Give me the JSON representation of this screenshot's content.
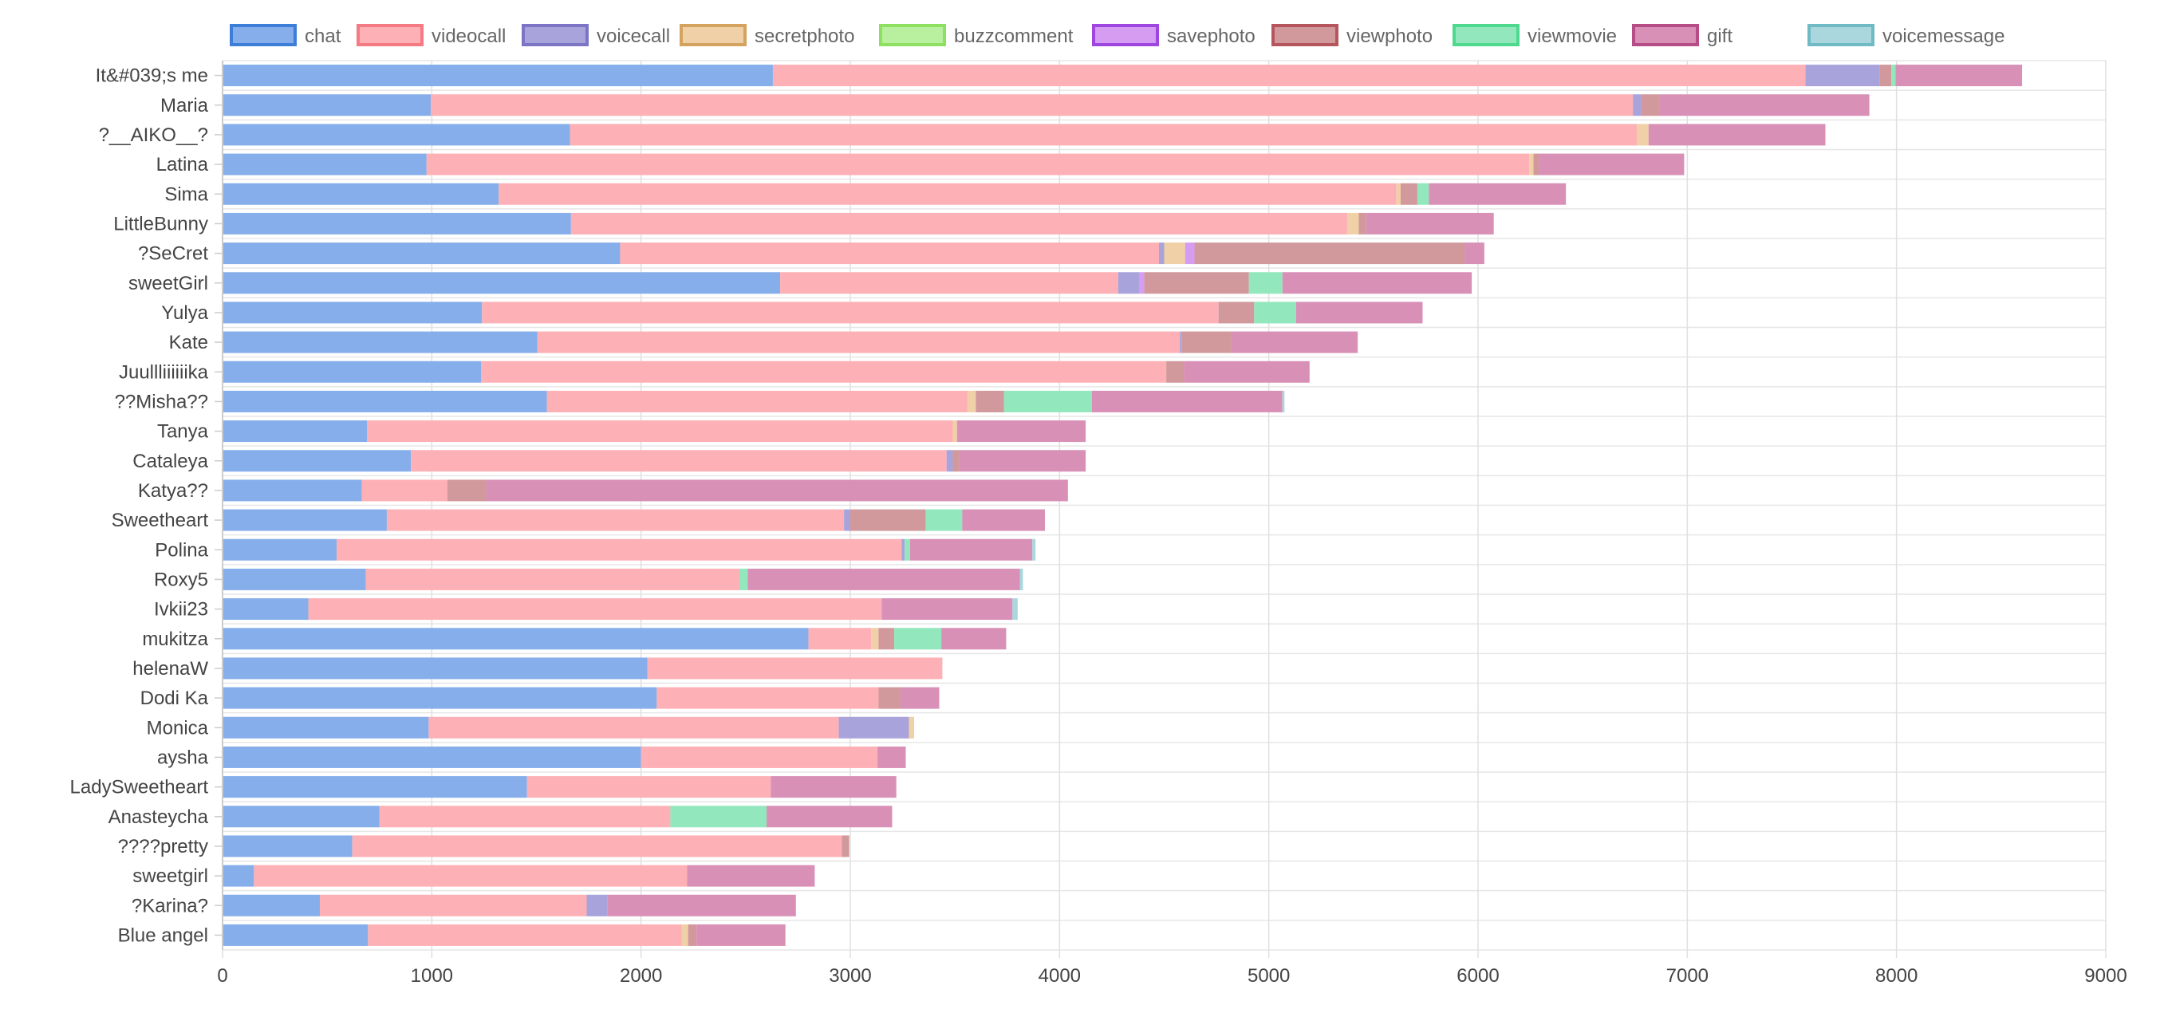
{
  "chart_data": {
    "type": "bar",
    "orientation": "horizontal",
    "stacked": true,
    "title": "",
    "xlabel": "",
    "ylabel": "",
    "xlim": [
      0,
      9000
    ],
    "x_ticks": [
      "0",
      "1000",
      "2000",
      "3000",
      "4000",
      "5000",
      "6000",
      "7000",
      "8000",
      "9000"
    ],
    "grid": true,
    "legend_position": "top",
    "categories": [
      "It&#039;s me",
      "Maria",
      "?__AIKO__?",
      "Latina",
      "Sima",
      "LittleBunny",
      "?SeCret",
      "sweetGirl",
      "Yulya",
      "Kate",
      "Juullliiiiiika",
      "??Misha??",
      "Tanya",
      "Cataleya",
      "Katya??",
      "Sweetheart",
      "Polina",
      "Roxy5",
      "Ivkii23",
      "mukitza",
      "helenaW",
      "Dodi Ka",
      "Monica",
      "aysha",
      "LadySweetheart",
      "Anasteycha",
      "????pretty",
      "sweetgirl",
      "?Karina?",
      "Blue angel"
    ],
    "series": [
      {
        "name": "chat",
        "fill": "#85aeeb",
        "legend_color": "#3d7fd8",
        "values": [
          2630,
          995,
          1660,
          975,
          1320,
          1665,
          1900,
          2665,
          1240,
          1505,
          1235,
          1550,
          690,
          900,
          665,
          785,
          545,
          685,
          410,
          2800,
          2030,
          2075,
          985,
          2000,
          1455,
          750,
          620,
          150,
          465,
          695
        ]
      },
      {
        "name": "videocall",
        "fill": "#fdb0b5",
        "legend_color": "#f47a84",
        "values": [
          4935,
          5745,
          5100,
          5270,
          4290,
          3710,
          2575,
          1615,
          3520,
          3070,
          3275,
          2010,
          2800,
          2560,
          410,
          2185,
          2700,
          1785,
          2740,
          300,
          1410,
          1060,
          1960,
          1130,
          1165,
          1390,
          2340,
          2070,
          1275,
          1500
        ]
      },
      {
        "name": "voicecall",
        "fill": "#a8a3da",
        "legend_color": "#7c75c5",
        "values": [
          355,
          40,
          0,
          0,
          0,
          0,
          25,
          100,
          0,
          10,
          0,
          0,
          0,
          30,
          0,
          30,
          15,
          0,
          0,
          0,
          0,
          0,
          335,
          0,
          0,
          0,
          0,
          0,
          100,
          0
        ]
      },
      {
        "name": "secretphoto",
        "fill": "#f0d0a6",
        "legend_color": "#d4a35f",
        "values": [
          0,
          0,
          55,
          20,
          20,
          55,
          100,
          0,
          0,
          0,
          0,
          40,
          20,
          0,
          0,
          0,
          0,
          0,
          0,
          35,
          0,
          0,
          25,
          0,
          0,
          0,
          0,
          0,
          0,
          30
        ]
      },
      {
        "name": "buzzcomment",
        "fill": "#b8f09f",
        "legend_color": "#8ee060",
        "values": [
          0,
          0,
          0,
          0,
          0,
          0,
          0,
          0,
          0,
          0,
          0,
          0,
          0,
          0,
          0,
          0,
          0,
          0,
          0,
          0,
          0,
          0,
          0,
          0,
          0,
          0,
          0,
          0,
          0,
          0
        ]
      },
      {
        "name": "savephoto",
        "fill": "#d59cf2",
        "legend_color": "#a046e0",
        "values": [
          0,
          0,
          0,
          0,
          0,
          0,
          45,
          25,
          0,
          0,
          0,
          0,
          0,
          0,
          0,
          0,
          0,
          0,
          0,
          0,
          0,
          0,
          0,
          0,
          0,
          0,
          0,
          0,
          0,
          0
        ]
      },
      {
        "name": "viewphoto",
        "fill": "#d1999b",
        "legend_color": "#b5565e",
        "values": [
          55,
          85,
          0,
          25,
          80,
          35,
          1290,
          500,
          170,
          235,
          85,
          135,
          0,
          30,
          185,
          360,
          0,
          0,
          0,
          75,
          0,
          105,
          0,
          0,
          0,
          0,
          35,
          0,
          0,
          40
        ]
      },
      {
        "name": "viewmovie",
        "fill": "#93e7bd",
        "legend_color": "#4fd98e",
        "values": [
          20,
          0,
          0,
          0,
          55,
          0,
          0,
          160,
          200,
          0,
          0,
          420,
          0,
          0,
          0,
          175,
          25,
          40,
          0,
          225,
          0,
          0,
          0,
          0,
          0,
          460,
          0,
          0,
          0,
          0
        ]
      },
      {
        "name": "gift",
        "fill": "#d890b7",
        "legend_color": "#b64d86",
        "values": [
          605,
          1005,
          845,
          695,
          655,
          610,
          95,
          905,
          605,
          605,
          600,
          910,
          615,
          605,
          2780,
          395,
          585,
          1300,
          625,
          310,
          0,
          185,
          0,
          135,
          600,
          600,
          0,
          610,
          900,
          425
        ]
      },
      {
        "name": "voicemessage",
        "fill": "#a9d7dd",
        "legend_color": "#6fbac4",
        "values": [
          0,
          0,
          0,
          0,
          0,
          0,
          0,
          0,
          0,
          0,
          0,
          10,
          0,
          0,
          0,
          0,
          15,
          15,
          25,
          0,
          0,
          0,
          0,
          0,
          0,
          0,
          0,
          0,
          0,
          0
        ]
      }
    ]
  }
}
